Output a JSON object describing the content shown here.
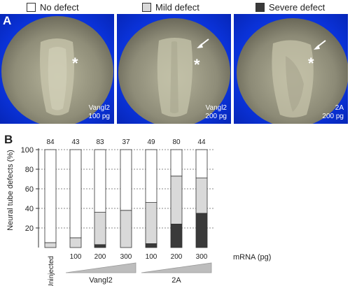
{
  "legend": {
    "items": [
      {
        "label": "No defect",
        "color": "#ffffff"
      },
      {
        "label": "Mild defect",
        "color": "#d9d9d9"
      },
      {
        "label": "Severe defect",
        "color": "#3a3a3a"
      }
    ]
  },
  "panel_a": {
    "letter": "A",
    "embryos": [
      {
        "line1": "Vangl2",
        "line2": "100 pg",
        "arrow": false
      },
      {
        "line1": "Vangl2",
        "line2": "200 pg",
        "arrow": true
      },
      {
        "line1": "2A",
        "line2": "200 pg",
        "arrow": true
      }
    ],
    "star_symbol": "*"
  },
  "panel_b": {
    "letter": "B"
  },
  "chart_data": {
    "type": "bar",
    "stacked": true,
    "ylabel": "Neural tube defects (%)",
    "xlabel": "mRNA (pg)",
    "ylim": [
      0,
      100
    ],
    "yticks": [
      20,
      40,
      60,
      80,
      100
    ],
    "grid": "dotted horizontal",
    "categories": [
      "Uninjected",
      "100",
      "200",
      "300",
      "100",
      "200",
      "300"
    ],
    "n_counts": [
      "84",
      "43",
      "83",
      "37",
      "49",
      "80",
      "44"
    ],
    "group_labels": [
      {
        "label": "Vangl2",
        "bars": [
          1,
          2,
          3
        ]
      },
      {
        "label": "2A",
        "bars": [
          4,
          5,
          6
        ]
      }
    ],
    "series": [
      {
        "name": "Severe defect",
        "color": "#3a3a3a",
        "values": [
          0,
          0,
          3,
          0,
          4,
          24,
          35
        ]
      },
      {
        "name": "Mild defect",
        "color": "#d9d9d9",
        "values": [
          5,
          10,
          33,
          38,
          42,
          49,
          36
        ]
      },
      {
        "name": "No defect",
        "color": "#ffffff",
        "values": [
          95,
          90,
          64,
          62,
          54,
          27,
          29
        ]
      }
    ]
  }
}
